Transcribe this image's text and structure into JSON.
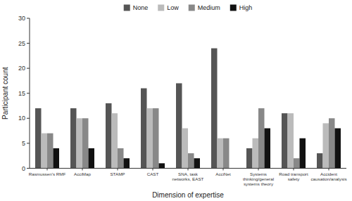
{
  "chart_data": {
    "type": "bar",
    "categories": [
      "Rasmussen's RMF",
      "AcciMap",
      "STAMP",
      "CAST",
      "SNA, task\nnetworks, EAST",
      "AcciNet",
      "Systems\nthinking/general\nsystems theory",
      "Road transport\nsafety",
      "Accident\ncausation/analysis"
    ],
    "series": [
      {
        "name": "None",
        "color": "#555555",
        "values": [
          12,
          12,
          13,
          16,
          17,
          24,
          4,
          11,
          3
        ]
      },
      {
        "name": "Low",
        "color": "#bbbbbb",
        "values": [
          7,
          10,
          11,
          12,
          8,
          6,
          6,
          11,
          9
        ]
      },
      {
        "name": "Medium",
        "color": "#888888",
        "values": [
          7,
          10,
          4,
          12,
          3,
          6,
          12,
          2,
          10
        ]
      },
      {
        "name": "High",
        "color": "#111111",
        "values": [
          4,
          4,
          2,
          1,
          2,
          0,
          8,
          6,
          8
        ]
      }
    ],
    "xlabel": "Dimension of expertise",
    "ylabel": "Participant count",
    "ylim": [
      0,
      30
    ],
    "yticks": [
      0,
      5,
      10,
      15,
      20,
      25,
      30
    ],
    "grid": false,
    "legend": "top"
  }
}
